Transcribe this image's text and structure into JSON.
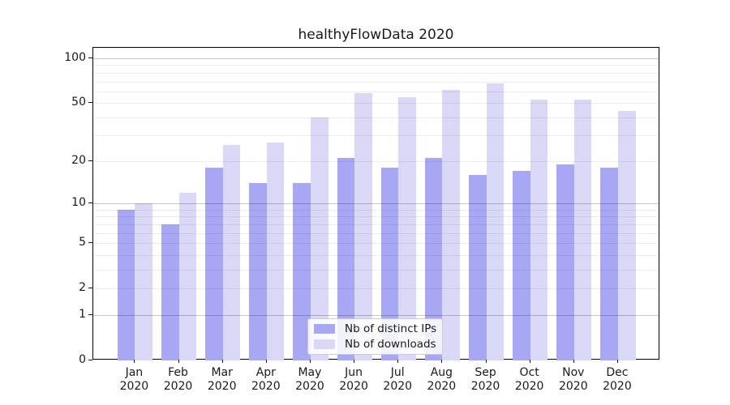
{
  "chart_data": {
    "type": "bar",
    "title": "healthyFlowData 2020",
    "xlabel": "",
    "ylabel": "",
    "yscale": "log1p",
    "ylim": [
      0,
      117.7
    ],
    "grid": "on",
    "legend_position": "lower center",
    "categories": [
      {
        "month": "Jan",
        "year": "2020"
      },
      {
        "month": "Feb",
        "year": "2020"
      },
      {
        "month": "Mar",
        "year": "2020"
      },
      {
        "month": "Apr",
        "year": "2020"
      },
      {
        "month": "May",
        "year": "2020"
      },
      {
        "month": "Jun",
        "year": "2020"
      },
      {
        "month": "Jul",
        "year": "2020"
      },
      {
        "month": "Aug",
        "year": "2020"
      },
      {
        "month": "Sep",
        "year": "2020"
      },
      {
        "month": "Oct",
        "year": "2020"
      },
      {
        "month": "Nov",
        "year": "2020"
      },
      {
        "month": "Dec",
        "year": "2020"
      }
    ],
    "series": [
      {
        "name": "Nb of distinct IPs",
        "color": "#a7a7f3",
        "values": [
          9,
          7,
          18,
          14,
          14,
          21,
          18,
          21,
          16,
          17,
          19,
          18
        ]
      },
      {
        "name": "Nb of downloads",
        "color": "#d9d9f7",
        "values": [
          10,
          12,
          26,
          27,
          40,
          58,
          55,
          61,
          68,
          53,
          53,
          44
        ]
      }
    ],
    "yticks": [
      0,
      1,
      2,
      5,
      10,
      20,
      50,
      100
    ],
    "grid_major": [
      1,
      10,
      100
    ],
    "grid_minor": [
      2,
      3,
      4,
      5,
      6,
      7,
      8,
      9,
      20,
      30,
      40,
      50,
      60,
      70,
      80,
      90
    ],
    "colors": {
      "spine": "#000000",
      "text": "#1a1a1a",
      "background": "#ffffff",
      "legend_border": "#cccccc"
    }
  }
}
